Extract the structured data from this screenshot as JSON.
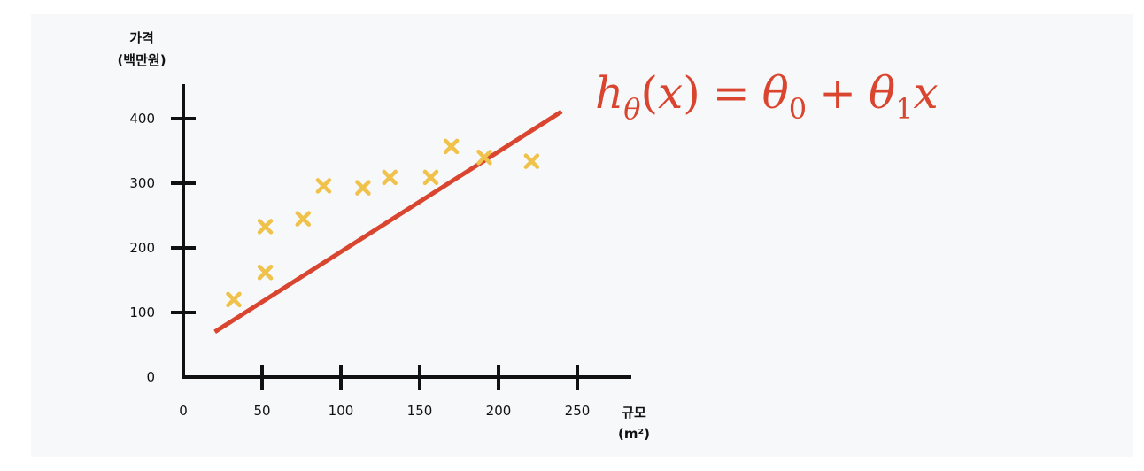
{
  "chart_data": {
    "type": "scatter",
    "ylabel_line1": "가격",
    "ylabel_line2": "(백만원)",
    "xlabel_line1": "규모",
    "xlabel_line2": "(m²)",
    "xlim": [
      0,
      280
    ],
    "ylim": [
      0,
      450
    ],
    "x_ticks": [
      0,
      50,
      100,
      150,
      200,
      250
    ],
    "y_ticks": [
      0,
      100,
      200,
      300,
      400
    ],
    "points": [
      {
        "x": 32,
        "y": 120
      },
      {
        "x": 52,
        "y": 162
      },
      {
        "x": 52,
        "y": 233
      },
      {
        "x": 76,
        "y": 245
      },
      {
        "x": 89,
        "y": 296
      },
      {
        "x": 114,
        "y": 293
      },
      {
        "x": 131,
        "y": 309
      },
      {
        "x": 157,
        "y": 309
      },
      {
        "x": 170,
        "y": 357
      },
      {
        "x": 191,
        "y": 340
      },
      {
        "x": 221,
        "y": 334
      }
    ],
    "fit_line": {
      "x": [
        20,
        240
      ],
      "y": [
        70,
        411
      ]
    },
    "formula": "h_θ(x) = θ_0 + θ_1 x",
    "colors": {
      "points": "#f0c24b",
      "line": "#d9452f",
      "axis": "#111111",
      "panel": "#f7f8f9"
    }
  }
}
